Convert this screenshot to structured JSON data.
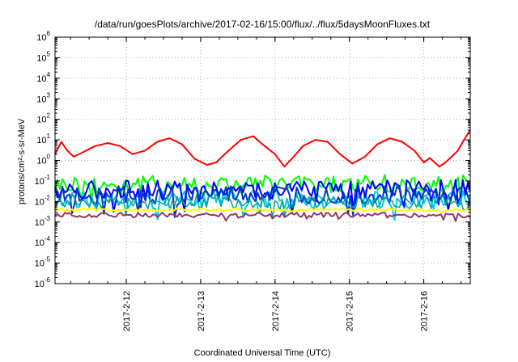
{
  "chart_data": {
    "type": "line",
    "title": "/data/run/goesPlots/archive/2017-02-16/15:00/flux/../flux/5daysMoonFluxes.txt",
    "xlabel": "Coordinated Universal Time (UTC)",
    "ylabel": "protons/cm²-s-sr-MeV",
    "y_scale": "log",
    "ylim": [
      1e-06,
      1000000.0
    ],
    "xlim": [
      "2017-02-11T01:00",
      "2017-02-16T15:00"
    ],
    "x_tick_labels": [
      "2017-2-12",
      "2017-2-13",
      "2017-2-14",
      "2017-2-15",
      "2017-2-16"
    ],
    "x_ticks": [
      "2017-02-12T00:00",
      "2017-02-13T00:00",
      "2017-02-14T00:00",
      "2017-02-15T00:00",
      "2017-02-16T00:00"
    ],
    "y_tick_labels": [
      {
        "base": "10",
        "exp": "-6",
        "value": 1e-06
      },
      {
        "base": "10",
        "exp": "-5",
        "value": 1e-05
      },
      {
        "base": "10",
        "exp": "-4",
        "value": 0.0001
      },
      {
        "base": "10",
        "exp": "-3",
        "value": 0.001
      },
      {
        "base": "10",
        "exp": "-2",
        "value": 0.01
      },
      {
        "base": "10",
        "exp": "-1",
        "value": 0.1
      },
      {
        "base": "10",
        "exp": "0",
        "value": 1
      },
      {
        "base": "10",
        "exp": "1",
        "value": 10
      },
      {
        "base": "10",
        "exp": "2",
        "value": 100
      },
      {
        "base": "10",
        "exp": "3",
        "value": 1000
      },
      {
        "base": "10",
        "exp": "4",
        "value": 10000
      },
      {
        "base": "10",
        "exp": "5",
        "value": 100000
      },
      {
        "base": "10",
        "exp": "6",
        "value": 1000000
      }
    ],
    "grid": true,
    "legend": "none",
    "series": [
      {
        "color": "#ff0000",
        "width": 2,
        "x": [
          "2017-02-11T01:00",
          "2017-02-11T03:00",
          "2017-02-11T05:00",
          "2017-02-11T07:00",
          "2017-02-11T10:00",
          "2017-02-11T14:00",
          "2017-02-11T18:00",
          "2017-02-11T22:00",
          "2017-02-12T02:00",
          "2017-02-12T06:00",
          "2017-02-12T10:00",
          "2017-02-12T14:00",
          "2017-02-12T18:00",
          "2017-02-12T22:00",
          "2017-02-13T02:00",
          "2017-02-13T05:00",
          "2017-02-13T09:00",
          "2017-02-13T13:00",
          "2017-02-13T17:00",
          "2017-02-13T20:00",
          "2017-02-14T00:00",
          "2017-02-14T03:00",
          "2017-02-14T06:00",
          "2017-02-14T09:00",
          "2017-02-14T13:00",
          "2017-02-14T17:00",
          "2017-02-14T21:00",
          "2017-02-15T01:00",
          "2017-02-15T05:00",
          "2017-02-15T09:00",
          "2017-02-15T13:00",
          "2017-02-15T17:00",
          "2017-02-15T21:00",
          "2017-02-16T00:00",
          "2017-02-16T02:00",
          "2017-02-16T05:00",
          "2017-02-16T07:00",
          "2017-02-16T09:00",
          "2017-02-16T11:00",
          "2017-02-16T13:00",
          "2017-02-16T15:00"
        ],
        "values": [
          2,
          8,
          3,
          1.5,
          2.5,
          5,
          7,
          5,
          2,
          3,
          8,
          12,
          6,
          1.2,
          0.6,
          0.8,
          3,
          10,
          15,
          6,
          2,
          0.5,
          1.5,
          5,
          10,
          8,
          2,
          0.7,
          1.5,
          6,
          12,
          8,
          3,
          0.8,
          1.3,
          0.5,
          0.8,
          1.5,
          3,
          10,
          30
        ]
      },
      {
        "color": "#00ff00",
        "width": 2,
        "mean": 0.07,
        "spread": 0.45
      },
      {
        "color": "#00ccee",
        "width": 2,
        "mean": 0.012,
        "spread": 0.45
      },
      {
        "color": "#0000ff",
        "width": 2,
        "mean": 0.04,
        "spread": 0.45
      },
      {
        "color": "#0033cc",
        "width": 2,
        "mean": 0.02,
        "spread": 0.45
      },
      {
        "color": "#00a0a0",
        "width": 1.5,
        "mean": 0.01,
        "spread": 0.35
      },
      {
        "color": "#ffff00",
        "width": 2,
        "mean": 0.004,
        "spread": 0.08
      },
      {
        "color": "#993366",
        "width": 2,
        "mean": 0.0022,
        "spread": 0.12
      }
    ]
  }
}
